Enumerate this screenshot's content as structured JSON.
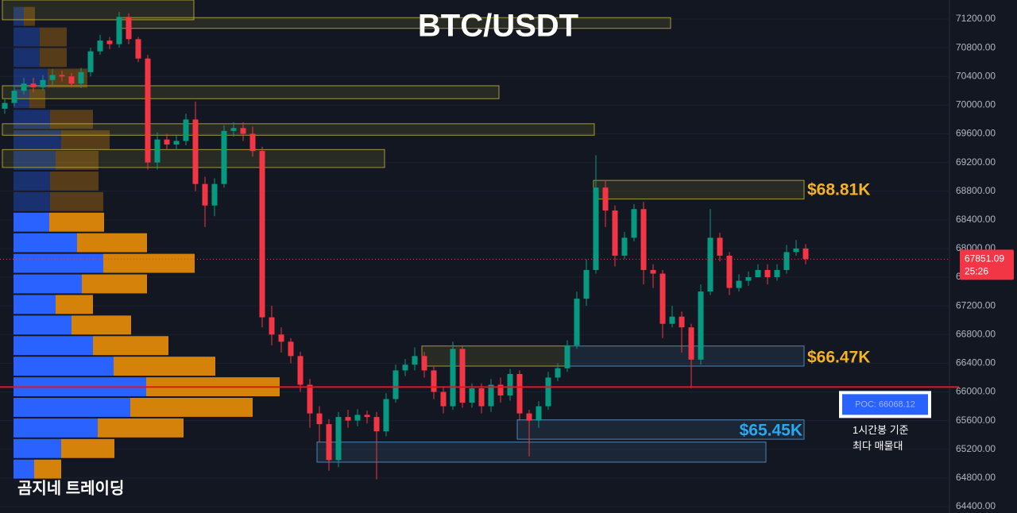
{
  "chart_data": {
    "type": "candlestick",
    "title": "BTC/USDT",
    "watermark": "곰지네 트레이딩",
    "up_color": "#089981",
    "down_color": "#f23645",
    "ylim": [
      64311,
      71466
    ],
    "yticks": [
      {
        "value": 64400,
        "label": "64400.00"
      },
      {
        "value": 64800,
        "label": "64800.00"
      },
      {
        "value": 65200,
        "label": "65200.00"
      },
      {
        "value": 65600,
        "label": "65600.00"
      },
      {
        "value": 66000,
        "label": "66000.00"
      },
      {
        "value": 66400,
        "label": "66400.00"
      },
      {
        "value": 66800,
        "label": "66800.00"
      },
      {
        "value": 67200,
        "label": "67200.00"
      },
      {
        "value": 67600,
        "label": "67600.00"
      },
      {
        "value": 68000,
        "label": "68000.00"
      },
      {
        "value": 68400,
        "label": "68400.00"
      },
      {
        "value": 68800,
        "label": "68800.00"
      },
      {
        "value": 69200,
        "label": "69200.00"
      },
      {
        "value": 69600,
        "label": "69600.00"
      },
      {
        "value": 70000,
        "label": "70000.00"
      },
      {
        "value": 70400,
        "label": "70400.00"
      },
      {
        "value": 70800,
        "label": "70800.00"
      },
      {
        "value": 71200,
        "label": "71200.00"
      }
    ],
    "open": [
      69950,
      70030,
      70200,
      70300,
      70250,
      70350,
      70420,
      70400,
      70300,
      70460,
      70750,
      70900,
      70850,
      71230,
      70920,
      70650,
      69200,
      69520,
      69450,
      69500,
      69800,
      68900,
      68600,
      68900,
      69640,
      69680,
      69600,
      69360,
      67040,
      66800,
      66700,
      66500,
      66100,
      65700,
      65550,
      65050,
      65650,
      65600,
      65680,
      65650,
      65450,
      65900,
      66300,
      66380,
      66500,
      66300,
      66000,
      65800,
      66600,
      65850,
      66050,
      65800,
      66100,
      65950,
      66250,
      65700,
      65600,
      65800,
      66200,
      66330,
      66650,
      67300,
      67700,
      68850,
      68530,
      67900,
      68150,
      68550,
      67700,
      67650,
      66950,
      67050,
      66900,
      66450,
      67400,
      68150,
      67900,
      67450,
      67550,
      67600,
      67700,
      67600,
      67700,
      67950,
      68000
    ],
    "high": [
      70100,
      70280,
      70380,
      70380,
      70420,
      70500,
      70480,
      70450,
      70520,
      70800,
      70980,
      70950,
      71300,
      71280,
      70950,
      70700,
      69620,
      69600,
      69580,
      69880,
      70050,
      69000,
      68980,
      69720,
      69760,
      69760,
      69700,
      69420,
      67200,
      66900,
      66750,
      66560,
      66180,
      65800,
      65620,
      65720,
      65750,
      65760,
      65740,
      65720,
      65980,
      66380,
      66460,
      66620,
      66560,
      66350,
      66080,
      66700,
      66650,
      66120,
      66120,
      66180,
      66200,
      66320,
      66300,
      65750,
      65870,
      66280,
      66400,
      66720,
      67400,
      67850,
      69300,
      68950,
      68600,
      68230,
      68620,
      68650,
      67780,
      67700,
      67200,
      67120,
      66950,
      67500,
      68550,
      68220,
      67950,
      67640,
      67680,
      67780,
      67780,
      67780,
      68050,
      68120,
      68060
    ],
    "low": [
      69880,
      69980,
      70150,
      70180,
      70200,
      70280,
      70330,
      70250,
      70240,
      70400,
      70700,
      70780,
      70800,
      70850,
      70600,
      69100,
      69100,
      69380,
      69380,
      69440,
      68800,
      68300,
      68450,
      68850,
      69560,
      69500,
      69280,
      66900,
      66650,
      66550,
      66400,
      66000,
      65500,
      65300,
      64900,
      64950,
      65500,
      65520,
      65560,
      64780,
      65380,
      65850,
      66220,
      66300,
      66200,
      65900,
      65700,
      65750,
      65780,
      65780,
      65700,
      65720,
      65850,
      65880,
      65600,
      65100,
      65500,
      65750,
      66150,
      66280,
      66600,
      67200,
      67650,
      68300,
      67750,
      67850,
      68100,
      67500,
      67450,
      66750,
      66900,
      66550,
      66050,
      66380,
      67350,
      67820,
      67350,
      67400,
      67480,
      67600,
      67500,
      67550,
      67650,
      67900,
      67780
    ],
    "close": [
      70030,
      70200,
      70300,
      70250,
      70350,
      70420,
      70400,
      70300,
      70460,
      70750,
      70900,
      70850,
      71230,
      70920,
      70650,
      69200,
      69520,
      69450,
      69500,
      69800,
      68900,
      68600,
      68900,
      69640,
      69680,
      69600,
      69360,
      67040,
      66800,
      66700,
      66500,
      66100,
      65700,
      65550,
      65050,
      65650,
      65600,
      65680,
      65650,
      65450,
      65900,
      66300,
      66380,
      66500,
      66300,
      66000,
      65800,
      66600,
      65850,
      66050,
      65800,
      66100,
      65950,
      66250,
      65700,
      65600,
      65800,
      66200,
      66330,
      66650,
      67300,
      67700,
      68850,
      68530,
      67900,
      68150,
      68550,
      67700,
      67650,
      66950,
      67050,
      66900,
      66450,
      67400,
      68150,
      67900,
      67450,
      67550,
      67600,
      67700,
      67600,
      67700,
      67950,
      68000,
      67851.09
    ],
    "volume_profile": {
      "xlim": [
        0,
        1178
      ],
      "buy_color": "#2962ff",
      "sell_color": "#d4820a",
      "bins": [
        64780,
        65067,
        65354,
        65641,
        65928,
        66215,
        66502,
        66789,
        67076,
        67363,
        67650,
        67937,
        68224,
        68511,
        68798,
        69085,
        69372,
        69659,
        69946,
        70233,
        70520,
        70807,
        71094,
        71381
      ],
      "buy": [
        26,
        60,
        106,
        147,
        167,
        126,
        100,
        73,
        53,
        86,
        113,
        80,
        45,
        46,
        46,
        53,
        60,
        46,
        20,
        43,
        33,
        33,
        13
      ],
      "sell": [
        34,
        67,
        108,
        154,
        168,
        128,
        95,
        75,
        47,
        82,
        115,
        88,
        69,
        67,
        61,
        54,
        61,
        54,
        20,
        50,
        34,
        34,
        14
      ]
    },
    "zones": [
      {
        "low": 71190,
        "high": 71466,
        "start": 0,
        "end": 20,
        "color": "#c9b53a"
      },
      {
        "low": 71070,
        "high": 71220,
        "start": 12,
        "end": 70,
        "color": "#c9b53a"
      },
      {
        "low": 70090,
        "high": 70270,
        "start": 0,
        "end": 52,
        "color": "#c9b53a"
      },
      {
        "low": 69580,
        "high": 69740,
        "start": 0,
        "end": 62,
        "color": "#c9b53a"
      },
      {
        "low": 69130,
        "high": 69380,
        "start": 0,
        "end": 40,
        "color": "#c9b53a"
      },
      {
        "low": 68690,
        "high": 68950,
        "start": 62,
        "end": 84,
        "color": "#c9b53a"
      },
      {
        "low": 66360,
        "high": 66640,
        "start": 44,
        "end": 59,
        "color": "#c9b53a"
      },
      {
        "low": 66360,
        "high": 66640,
        "start": 59,
        "end": 84,
        "color": "#5b9bd5"
      },
      {
        "low": 65340,
        "high": 65610,
        "start": 54,
        "end": 84,
        "color": "#5b9bd5"
      },
      {
        "low": 65020,
        "high": 65300,
        "start": 33,
        "end": 80,
        "color": "#5b9bd5"
      }
    ],
    "annotations": [
      {
        "text": "$68.81K",
        "price": 68810,
        "color": "#f5b323"
      },
      {
        "text": "$66.47K",
        "price": 66470,
        "color": "#f5b323"
      },
      {
        "text": "$65.45K",
        "price": 65450,
        "color": "#29a8f0"
      }
    ],
    "poc": {
      "value": 66068.12,
      "label": "POC: 66068.12"
    },
    "poc_note": [
      "1시간봉 기준",
      "최다 매물대"
    ],
    "last_price": 67851.09,
    "countdown": "25:26"
  }
}
